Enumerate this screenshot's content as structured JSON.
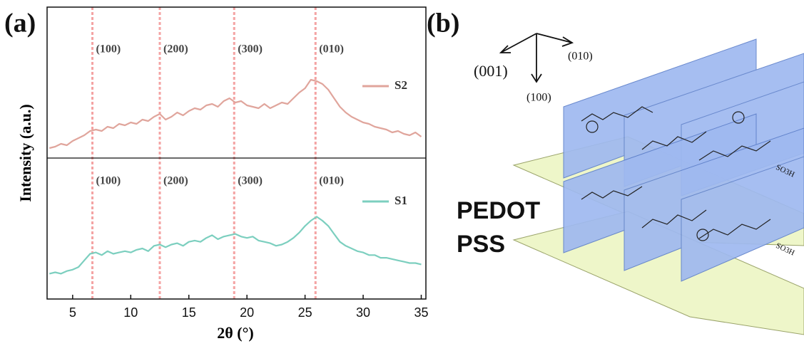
{
  "panel_labels": [
    "(a)",
    "(b)"
  ],
  "chart_data": {
    "type": "line",
    "xlabel": "2θ (°)",
    "ylabel": "Intensity (a.u.)",
    "x": [
      3,
      3.5,
      4,
      4.5,
      5,
      5.5,
      6,
      6.5,
      7,
      7.5,
      8,
      8.5,
      9,
      9.5,
      10,
      10.5,
      11,
      11.5,
      12,
      12.5,
      13,
      13.5,
      14,
      14.5,
      15,
      15.5,
      16,
      16.5,
      17,
      17.5,
      18,
      18.5,
      19,
      19.5,
      20,
      20.5,
      21,
      21.5,
      22,
      22.5,
      23,
      23.5,
      24,
      24.5,
      25,
      25.5,
      26,
      26.5,
      27,
      27.5,
      28,
      28.5,
      29,
      29.5,
      30,
      30.5,
      31,
      31.5,
      32,
      32.5,
      33,
      33.5,
      34,
      34.5,
      35
    ],
    "series": [
      {
        "name": "S2",
        "color": "#e0a59c",
        "values": [
          5,
          6,
          8,
          7,
          10,
          12,
          14,
          17,
          18,
          17,
          20,
          19,
          22,
          21,
          23,
          22,
          25,
          24,
          27,
          29,
          25,
          27,
          30,
          28,
          31,
          33,
          32,
          35,
          36,
          34,
          38,
          40,
          37,
          38,
          35,
          34,
          33,
          36,
          33,
          35,
          37,
          36,
          40,
          44,
          47,
          53,
          52,
          50,
          46,
          40,
          34,
          30,
          27,
          25,
          23,
          22,
          20,
          19,
          18,
          16,
          17,
          15,
          14,
          16,
          13
        ]
      },
      {
        "name": "S1",
        "color": "#7ccfbf",
        "values": [
          17,
          18,
          17,
          19,
          20,
          22,
          27,
          32,
          33,
          31,
          34,
          32,
          33,
          34,
          33,
          35,
          36,
          34,
          38,
          39,
          37,
          39,
          40,
          38,
          41,
          42,
          41,
          44,
          46,
          43,
          45,
          46,
          47,
          45,
          44,
          45,
          42,
          41,
          40,
          38,
          39,
          41,
          44,
          48,
          53,
          57,
          60,
          57,
          53,
          47,
          41,
          38,
          36,
          34,
          33,
          31,
          31,
          29,
          29,
          28,
          27,
          26,
          25,
          25,
          24
        ]
      }
    ],
    "peaks": [
      {
        "x": 6.7,
        "label": "(100)"
      },
      {
        "x": 12.5,
        "label": "(200)"
      },
      {
        "x": 18.9,
        "label": "(300)"
      },
      {
        "x": 25.9,
        "label": "(010)"
      }
    ],
    "peak_color": "#f4a3a3",
    "xlim": [
      2.8,
      35.4
    ],
    "xticks": [
      5,
      10,
      15,
      20,
      25,
      30,
      35
    ],
    "ylim": [
      0,
      100
    ]
  },
  "diagram": {
    "directions": [
      "(001)",
      "(010)",
      "(100)"
    ],
    "materials": [
      "PEDOT",
      "PSS"
    ],
    "sulfonate": "SO3H"
  }
}
